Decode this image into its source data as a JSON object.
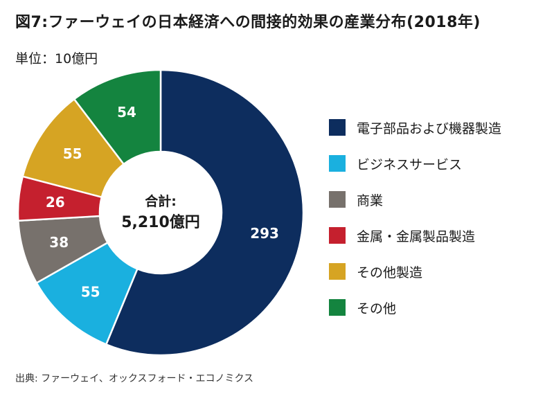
{
  "title": "図7:ファーウェイの日本経済への間接的効果の産業分布(2018年)",
  "unit": "単位：10億円",
  "source": "出典: ファーウェイ、オックスフォード・エコノミクス",
  "chart_data": {
    "type": "pie",
    "donut": true,
    "center_label_line1": "合計:",
    "center_label_line2": "5,210億円",
    "legend_position": "right",
    "slices": [
      {
        "label": "電子部品および機器製造",
        "value": 293,
        "display": "293",
        "color": "#0d2d5e"
      },
      {
        "label": "ビジネスサービス",
        "value": 55,
        "display": "55",
        "color": "#1ab0df"
      },
      {
        "label": "商業",
        "value": 38,
        "display": "38",
        "color": "#77716c"
      },
      {
        "label": "金属・金属製品製造",
        "value": 26,
        "display": "26",
        "color": "#c5202e"
      },
      {
        "label": "その他製造",
        "value": 55,
        "display": "55",
        "color": "#d6a423"
      },
      {
        "label": "その他",
        "value": 54,
        "display": "54",
        "color": "#14843f"
      }
    ]
  }
}
